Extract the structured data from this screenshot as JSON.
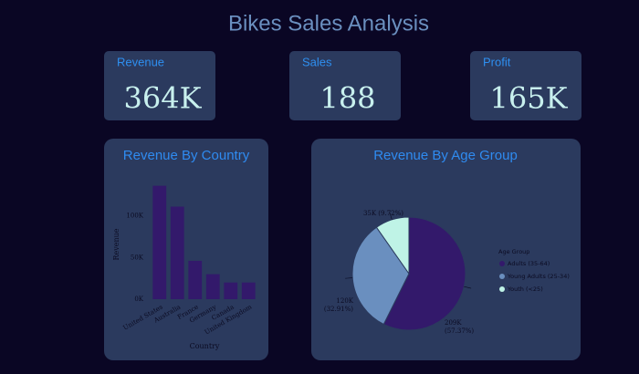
{
  "header": {
    "title": "Bikes Sales Analysis"
  },
  "kpis": [
    {
      "label": "Revenue",
      "value": "364K"
    },
    {
      "label": "Sales",
      "value": "188"
    },
    {
      "label": "Profit",
      "value": "165K"
    }
  ],
  "chart_data": [
    {
      "type": "bar",
      "title": "Revenue By Country",
      "x_label": "Country",
      "y_label": "Revenue",
      "categories": [
        "United States",
        "Australia",
        "France",
        "Germany",
        "Canada",
        "United Kingdom"
      ],
      "values": [
        136000,
        111000,
        46000,
        30000,
        20000,
        20000
      ],
      "color": "#33196b",
      "ylim": [
        0,
        140000
      ],
      "yticks": [
        {
          "value": 0,
          "label": "0K"
        },
        {
          "value": 50000,
          "label": "50K"
        },
        {
          "value": 100000,
          "label": "100K"
        }
      ]
    },
    {
      "type": "pie",
      "title": "Revenue By Age Group",
      "legend_title": "Age Group",
      "categories": [
        "Adults (35-64)",
        "Young Adults (25-34)",
        "Youth (<25)"
      ],
      "values": [
        57.37,
        32.91,
        9.72
      ],
      "value_labels": [
        "209K (57.37%)",
        "120K (32.91%)",
        "35K (9.72%)"
      ],
      "colors": [
        "#33196b",
        "#6a8fbf",
        "#bff3e6"
      ],
      "legend": "right"
    }
  ]
}
